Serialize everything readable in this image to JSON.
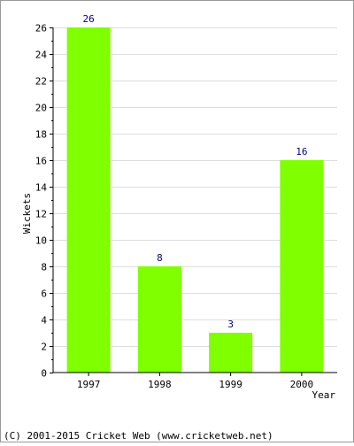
{
  "chart_data": {
    "type": "bar",
    "categories": [
      "1997",
      "1998",
      "1999",
      "2000"
    ],
    "values": [
      26,
      8,
      3,
      16
    ],
    "data_labels": [
      "26",
      "8",
      "3",
      "16"
    ],
    "ylabel": "Wickets",
    "xlabel": "Year",
    "ylim": [
      0,
      26
    ],
    "yticks": [
      "0",
      "2",
      "4",
      "6",
      "8",
      "10",
      "12",
      "14",
      "16",
      "18",
      "20",
      "22",
      "24",
      "26"
    ],
    "grid": true,
    "bar_color": "#7fff00",
    "label_color": "#000080"
  },
  "footer": {
    "copyright": "(C) 2001-2015 Cricket Web (www.cricketweb.net)"
  }
}
